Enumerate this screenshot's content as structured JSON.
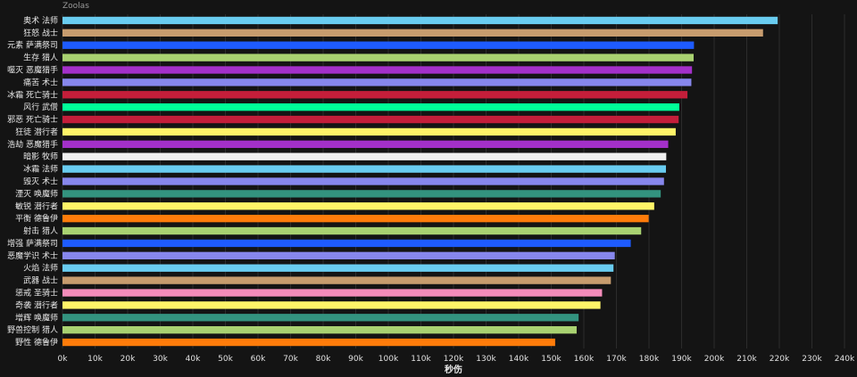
{
  "watermark": "Zoolas",
  "chart_data": {
    "type": "bar",
    "orientation": "horizontal",
    "xlabel": "秒伤",
    "ylabel": "",
    "xlim": [
      0,
      240000
    ],
    "x_ticks": [
      0,
      10000,
      20000,
      30000,
      40000,
      50000,
      60000,
      70000,
      80000,
      90000,
      100000,
      110000,
      120000,
      130000,
      140000,
      150000,
      160000,
      170000,
      180000,
      190000,
      200000,
      210000,
      220000,
      230000,
      240000
    ],
    "x_tick_labels": [
      "0k",
      "10k",
      "20k",
      "30k",
      "40k",
      "50k",
      "60k",
      "70k",
      "80k",
      "90k",
      "100k",
      "110k",
      "120k",
      "130k",
      "140k",
      "150k",
      "160k",
      "170k",
      "180k",
      "190k",
      "200k",
      "210k",
      "220k",
      "230k",
      "240k"
    ],
    "grid": "vertical",
    "categories": [
      "奥术 法师",
      "狂怒 战士",
      "元素 萨满祭司",
      "生存 猎人",
      "噬灭 恶魔猎手",
      "痛苦 术士",
      "冰霜 死亡骑士",
      "风行 武僧",
      "邪恶 死亡骑士",
      "狂徒 潜行者",
      "浩劫 恶魔猎手",
      "暗影 牧师",
      "冰霜 法师",
      "毁灭 术士",
      "湮灭 唤魔师",
      "敏锐 潜行者",
      "平衡 德鲁伊",
      "射击 猎人",
      "增强 萨满祭司",
      "恶魔学识 术士",
      "火焰 法师",
      "武器 战士",
      "惩戒 圣骑士",
      "奇袭 潜行者",
      "增辉 唤魔师",
      "野兽控制 猎人",
      "野性 德鲁伊"
    ],
    "values": [
      219500,
      215000,
      193800,
      193700,
      193200,
      193000,
      191800,
      189300,
      189100,
      188200,
      185900,
      185300,
      185200,
      184600,
      183600,
      181600,
      179900,
      177600,
      174400,
      169500,
      169100,
      168300,
      165600,
      165100,
      158400,
      157800,
      151200
    ],
    "colors": [
      "#69CCF0",
      "#C79C6E",
      "#1E5BFF",
      "#A9D271",
      "#A330C9",
      "#8787ED",
      "#C41E3A",
      "#00FF98",
      "#C41E3A",
      "#FFF468",
      "#A330C9",
      "#F0F0F0",
      "#69CCF0",
      "#8787ED",
      "#33937F",
      "#FFF468",
      "#FF7C0A",
      "#A9D271",
      "#1E5BFF",
      "#8787ED",
      "#69CCF0",
      "#C79C6E",
      "#F48CBA",
      "#FFF468",
      "#33937F",
      "#A9D271",
      "#FF7C0A"
    ]
  }
}
